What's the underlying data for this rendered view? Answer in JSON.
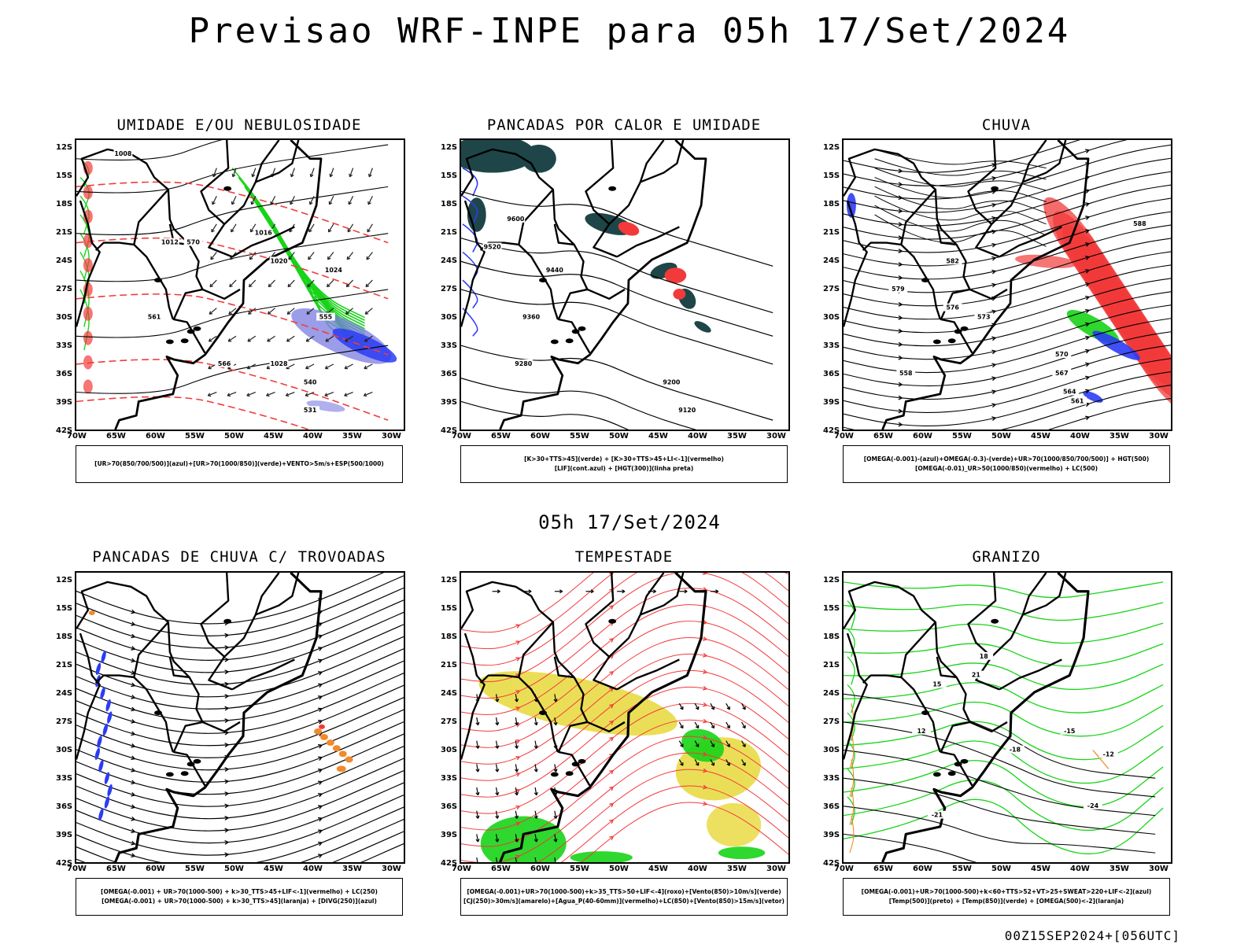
{
  "title": "Previsao WRF-INPE  para 05h 17/Set/2024",
  "subtitle": "05h 17/Set/2024",
  "footer": "00Z15SEP2024+[056UTC]",
  "axes": {
    "lat_labels": [
      "12S",
      "15S",
      "18S",
      "21S",
      "24S",
      "27S",
      "30S",
      "33S",
      "36S",
      "39S",
      "42S"
    ],
    "lon_labels": [
      "70W",
      "65W",
      "60W",
      "55W",
      "50W",
      "45W",
      "40W",
      "35W",
      "30W"
    ]
  },
  "panels": [
    {
      "title": "UMIDADE E/OU NEBULOSIDADE",
      "legend": [
        "[UR>70(850/700/500)](azul)+[UR>70(1000/850)](verde)+VENTO>5m/s+ESP(500/1000)"
      ],
      "contour_labels": [
        "1008",
        "1012",
        "1016",
        "1020",
        "1024",
        "1028",
        "570",
        "561",
        "566",
        "555",
        "540",
        "531"
      ]
    },
    {
      "title": "PANCADAS POR CALOR E UMIDADE",
      "legend": [
        "[K>30+TTS>45](verde) + [K>30+TTS>45+LI<-1](vermelho)",
        "[LIF](cont.azul) + [HGT(300)](linha preta)"
      ],
      "contour_labels": [
        "9600",
        "9520",
        "9440",
        "9360",
        "9280",
        "9200",
        "9120"
      ]
    },
    {
      "title": "CHUVA",
      "legend": [
        "[OMEGA(-0.001)-(azul)+OMEGA(-0.3)-(verde)+UR>70(1000/850/700/500)] + HGT(500)",
        "[OMEGA(-0.01)_UR>50(1000/850)(vermelho) + LC(500)"
      ],
      "contour_labels": [
        "588",
        "582",
        "579",
        "576",
        "573",
        "570",
        "567",
        "564",
        "561",
        "558"
      ]
    },
    {
      "title": "PANCADAS DE CHUVA C/ TROVOADAS",
      "legend": [
        "[OMEGA(-0.001) + UR>70(1000-500) + k>30_TTS>45+LIF<-1](vermelho) + LC(250)",
        "[OMEGA(-0.001) + UR>70(1000-500) + k>30_TTS>45](laranja) + [DIVG(250)](azul)"
      ],
      "contour_labels": []
    },
    {
      "title": "TEMPESTADE",
      "legend": [
        "[OMEGA(-0.001)+UR>70(1000-500)+k>35_TTS>50+LIF<-4](roxo)+[Vento(850)>10m/s](verde)",
        "[CJ(250)>30m/s](amarelo)+[Agua_P(40-60mm)](vermelho)+LC(850)+[Vento(850)>15m/s](vetor)"
      ],
      "contour_labels": []
    },
    {
      "title": "GRANIZO",
      "legend": [
        "[OMEGA(-0.001)+UR>70(1000-500)+k<60+TTS>52+VT>25+SWEAT>220+LIF<-2](azul)",
        "[Temp(500)](preto) + [Temp(850)](verde) + [OMEGA(500)<-2](laranja)"
      ],
      "contour_labels": [
        "-12",
        "-15",
        "-18",
        "-21",
        "-24",
        "12",
        "15",
        "18",
        "21"
      ]
    }
  ],
  "colors": {
    "blue": "#2b3cf5",
    "green": "#17d417",
    "red": "#f23a3a",
    "yellow": "#e8d83a",
    "orange": "#f08a2a",
    "dark_teal": "#1e4648",
    "purple_blue": "#7a7ce0"
  }
}
